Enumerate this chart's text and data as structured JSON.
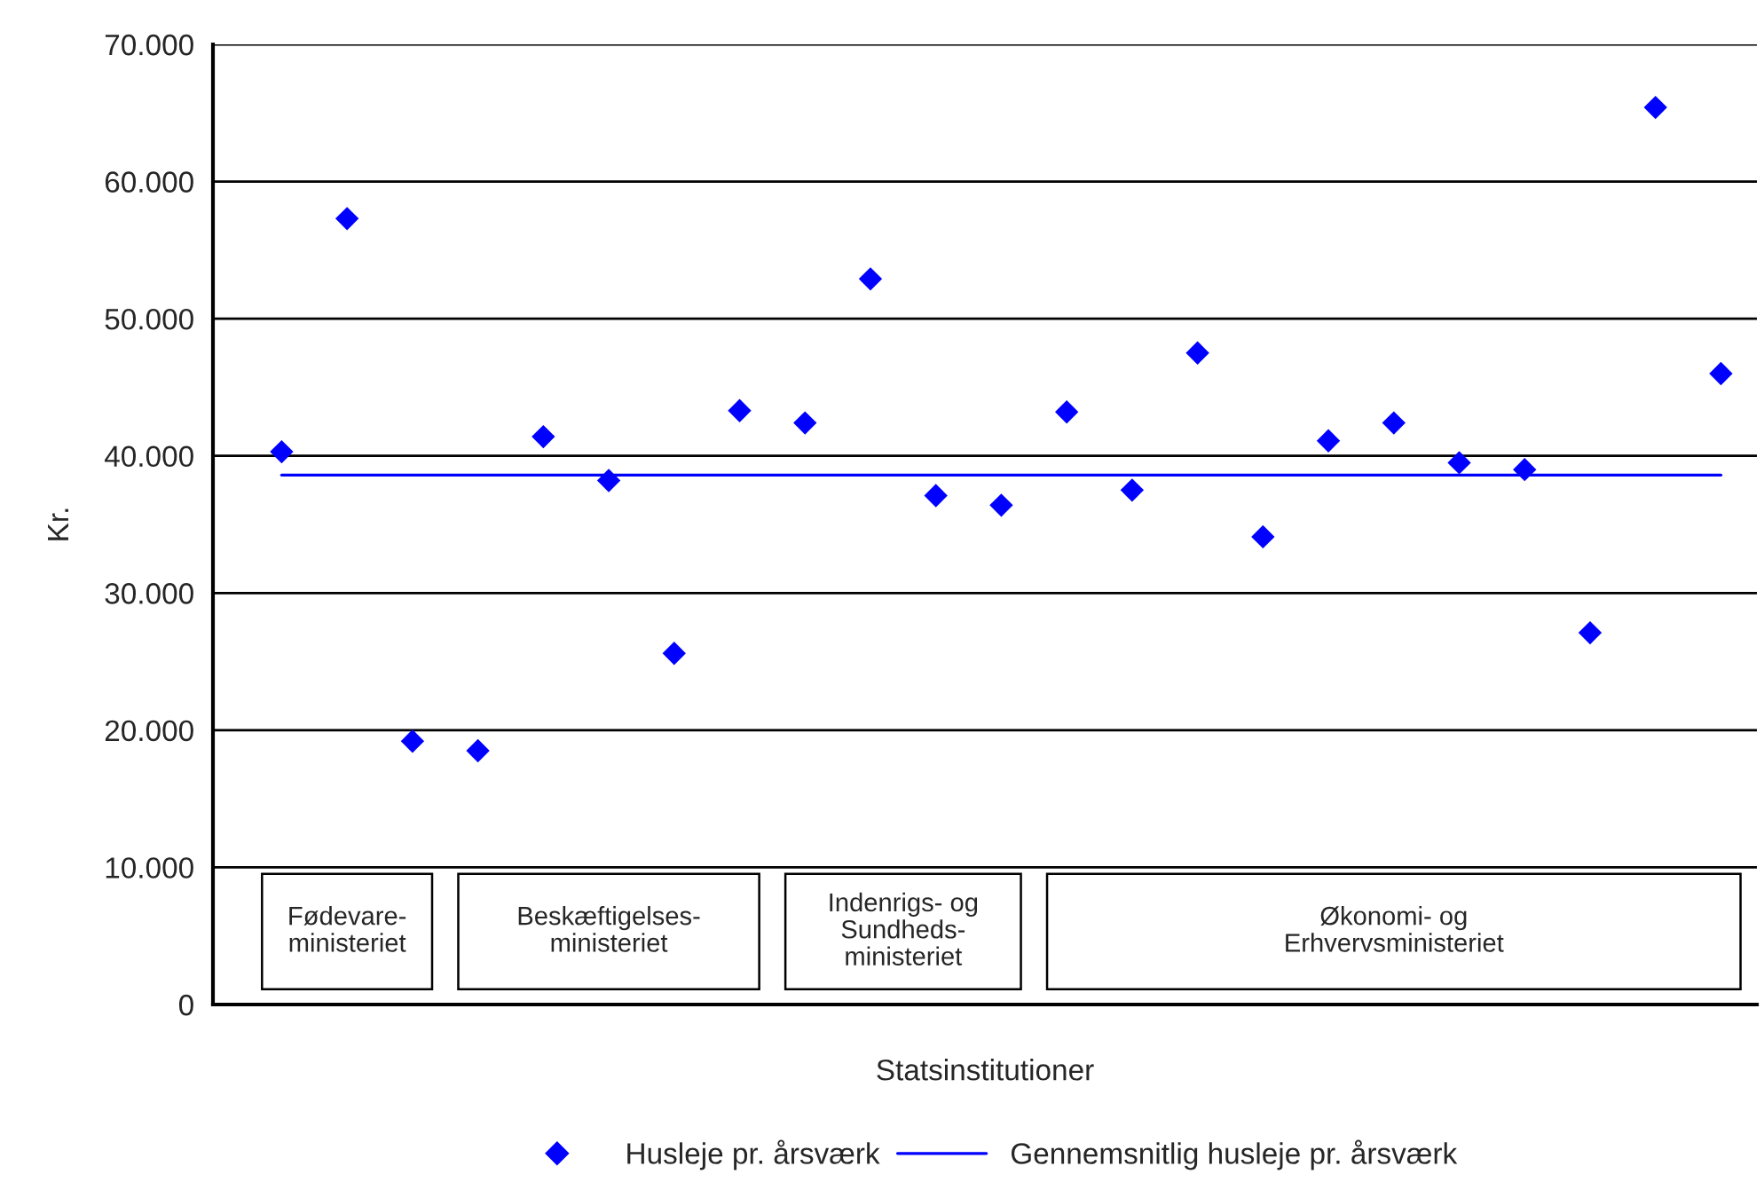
{
  "chart_data": {
    "type": "scatter",
    "xlabel": "Statsinstitutioner",
    "ylabel": "Kr.",
    "categories": [
      null,
      null,
      null,
      null,
      null,
      null,
      null,
      null,
      null,
      null,
      null,
      null,
      null,
      null,
      null,
      null,
      null,
      null,
      null,
      null,
      null,
      null,
      null
    ],
    "series": [
      {
        "name": "Husleje pr. årsværk",
        "color": "#0000ff",
        "marker": "diamond",
        "values": [
          40300,
          57300,
          19200,
          18500,
          41400,
          38200,
          25600,
          43300,
          42400,
          52900,
          37100,
          36400,
          43200,
          37500,
          47500,
          34100,
          41100,
          42400,
          39500,
          39000,
          27100,
          65400,
          46000
        ]
      },
      {
        "name": "Gennemsnitlig husleje pr. årsværk",
        "color": "#0000ff",
        "type": "line",
        "marker": "none",
        "line_style": "solid",
        "values": [
          38600,
          38600,
          38600,
          38600,
          38600,
          38600,
          38600,
          38600,
          38600,
          38600,
          38600,
          38600,
          38600,
          38600,
          38600,
          38600,
          38600,
          38600,
          38600,
          38600,
          38600,
          38600,
          38600
        ]
      }
    ],
    "ylim": [
      0,
      70000
    ],
    "yticks": [
      0,
      {
        "value": 10000,
        "label": "10.000"
      },
      {
        "value": 20000,
        "label": "20.000"
      },
      {
        "value": 30000,
        "label": "30.000"
      },
      {
        "value": 40000,
        "label": "40.000"
      },
      {
        "value": 50000,
        "label": "50.000"
      },
      {
        "value": 60000,
        "label": "60.000"
      },
      {
        "value": 70000,
        "label": "70.000"
      }
    ],
    "grid": "y",
    "legend": "bottom",
    "tick_labels": "y",
    "annotations": [
      "Fødevare-\nministeriet",
      "Beskæftigelses-\nministeriet",
      "Indenrigs- og\nSundheds-\nministeriet",
      "Økonomi- og\nErhvervsministeriet"
    ]
  }
}
